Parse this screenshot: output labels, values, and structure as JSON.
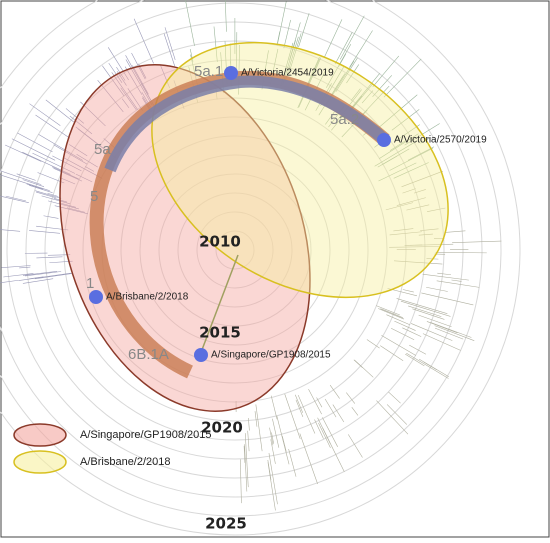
{
  "ring_labels": [
    "2010",
    "2015",
    "2020",
    "2025"
  ],
  "clade_labels": [
    "5a.1",
    "5a.2",
    "5a",
    "5",
    "1",
    "6B.1A"
  ],
  "strains": [
    "A/Victoria/2454/2019",
    "A/Victoria/2570/2019",
    "A/Brisbane/2/2018",
    "A/Singapore/GP1908/2015"
  ],
  "legend": {
    "items": [
      "A/Singapore/GP1908/2015",
      "A/Brisbane/2/2018"
    ]
  }
}
